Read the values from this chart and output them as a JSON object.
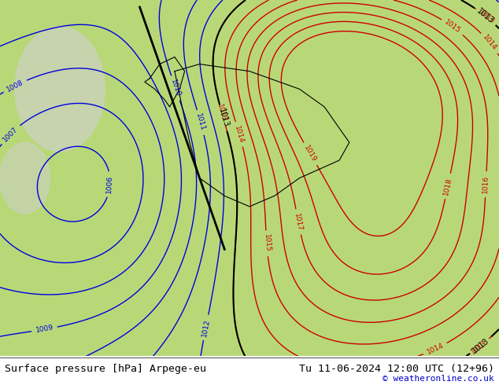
{
  "title_left": "Surface pressure [hPa] Arpege-eu",
  "title_right": "Tu 11-06-2024 12:00 UTC (12+96)",
  "credit": "© weatheronline.co.uk",
  "bg_color": "#c8e6a0",
  "map_bg": "#c8e6a0",
  "bottom_bar_color": "#000000",
  "bottom_bg": "#ffffff",
  "fig_width": 6.34,
  "fig_height": 4.9,
  "dpi": 100,
  "bottom_text_color": "#000000",
  "credit_color": "#0000cc",
  "font_size_bottom": 9.5,
  "font_size_credit": 8,
  "image_path": null
}
